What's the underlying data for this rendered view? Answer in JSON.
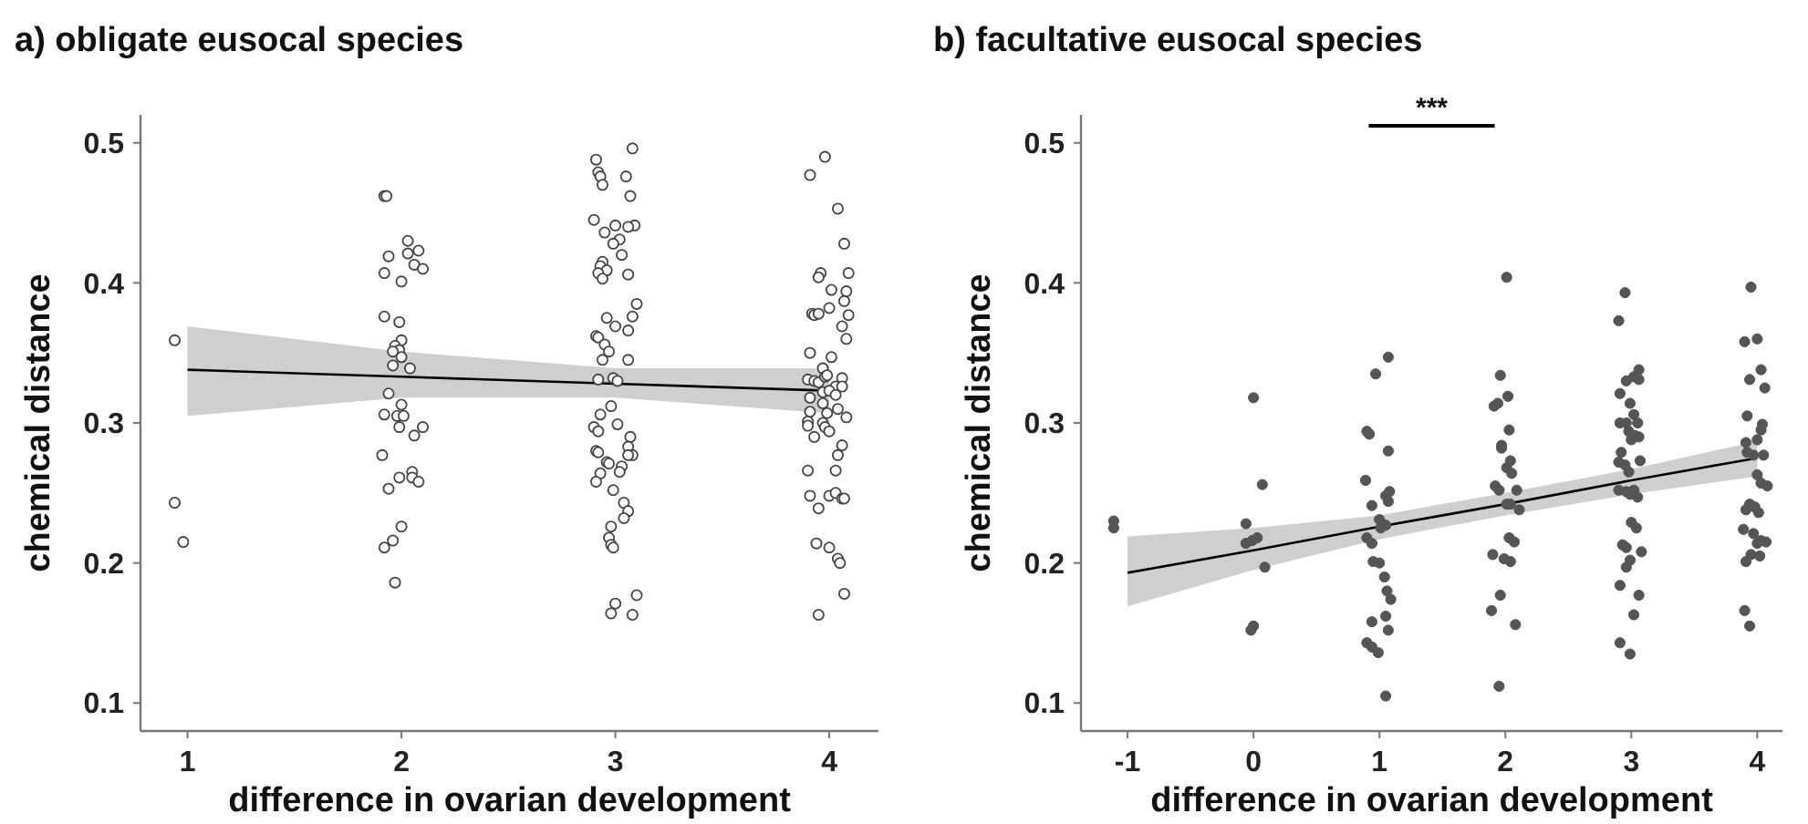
{
  "chart_data": [
    {
      "type": "scatter",
      "title": "a) obligate eusocal species",
      "xlabel": "difference in ovarian development",
      "ylabel": "chemical distance",
      "xlim": [
        0.78,
        4.23
      ],
      "ylim": [
        0.08,
        0.52
      ],
      "xticks": [
        1,
        2,
        3,
        4
      ],
      "yticks": [
        0.1,
        0.2,
        0.3,
        0.4,
        0.5
      ],
      "series": [
        {
          "marker": "circle",
          "color": "#444444",
          "x": [
            0.94,
            0.94,
            0.98,
            1.92,
            1.93,
            2.03,
            2.08,
            1.94,
            2.03,
            2.06,
            2.1,
            1.92,
            2.0,
            1.92,
            1.99,
            2.0,
            1.97,
            1.99,
            1.96,
            2.0,
            1.96,
            2.04,
            1.94,
            2.0,
            1.92,
            1.98,
            2.01,
            1.99,
            2.1,
            2.06,
            1.91,
            2.05,
            2.05,
            1.99,
            2.08,
            1.94,
            2.0,
            1.96,
            1.92,
            1.97,
            3.08,
            2.91,
            2.92,
            2.93,
            2.94,
            3.05,
            3.07,
            2.9,
            2.95,
            3.0,
            3.09,
            3.06,
            3.02,
            2.99,
            3.03,
            2.94,
            2.93,
            2.96,
            2.92,
            2.94,
            3.06,
            3.1,
            3.08,
            2.96,
            3.0,
            3.06,
            2.91,
            2.92,
            2.95,
            2.97,
            2.94,
            3.06,
            2.92,
            2.99,
            3.01,
            2.98,
            2.93,
            3.01,
            2.9,
            2.92,
            3.07,
            3.06,
            2.91,
            2.92,
            3.08,
            3.06,
            2.96,
            2.97,
            3.03,
            3.02,
            2.93,
            2.91,
            2.99,
            3.04,
            3.06,
            3.04,
            2.98,
            2.97,
            2.98,
            2.99,
            3.0,
            2.98,
            3.08,
            3.1,
            3.98,
            3.91,
            4.04,
            4.07,
            3.96,
            3.95,
            4.09,
            4.01,
            4.08,
            4.07,
            3.92,
            3.93,
            3.95,
            4.0,
            4.09,
            4.06,
            4.08,
            3.91,
            4.01,
            3.97,
            3.9,
            3.93,
            3.95,
            3.98,
            3.99,
            4.06,
            4.03,
            3.97,
            4.0,
            4.06,
            4.03,
            3.91,
            3.97,
            3.91,
            3.99,
            4.04,
            4.08,
            3.9,
            3.9,
            3.97,
            3.98,
            4.0,
            3.93,
            4.06,
            4.04,
            4.03,
            3.9,
            3.91,
            3.95,
            4.0,
            4.03,
            4.06,
            4.07,
            3.94,
            4.0,
            4.04,
            4.05,
            4.07,
            3.95
          ],
          "values": [
            0.359,
            0.243,
            0.215,
            0.462,
            0.462,
            0.43,
            0.423,
            0.419,
            0.421,
            0.413,
            0.41,
            0.407,
            0.401,
            0.376,
            0.372,
            0.359,
            0.355,
            0.352,
            0.351,
            0.347,
            0.341,
            0.339,
            0.321,
            0.313,
            0.306,
            0.305,
            0.305,
            0.297,
            0.297,
            0.291,
            0.277,
            0.265,
            0.261,
            0.261,
            0.258,
            0.253,
            0.226,
            0.216,
            0.211,
            0.186,
            0.496,
            0.488,
            0.479,
            0.476,
            0.47,
            0.476,
            0.462,
            0.445,
            0.436,
            0.441,
            0.441,
            0.44,
            0.431,
            0.428,
            0.42,
            0.415,
            0.412,
            0.409,
            0.407,
            0.403,
            0.406,
            0.385,
            0.376,
            0.375,
            0.369,
            0.366,
            0.362,
            0.361,
            0.356,
            0.351,
            0.345,
            0.345,
            0.331,
            0.332,
            0.33,
            0.312,
            0.306,
            0.299,
            0.297,
            0.294,
            0.29,
            0.283,
            0.28,
            0.279,
            0.277,
            0.277,
            0.272,
            0.271,
            0.269,
            0.265,
            0.264,
            0.258,
            0.252,
            0.243,
            0.237,
            0.232,
            0.226,
            0.218,
            0.213,
            0.211,
            0.171,
            0.164,
            0.163,
            0.177,
            0.49,
            0.477,
            0.453,
            0.428,
            0.407,
            0.404,
            0.407,
            0.395,
            0.394,
            0.387,
            0.378,
            0.377,
            0.378,
            0.382,
            0.377,
            0.369,
            0.36,
            0.35,
            0.347,
            0.339,
            0.331,
            0.33,
            0.329,
            0.333,
            0.334,
            0.332,
            0.326,
            0.322,
            0.323,
            0.326,
            0.32,
            0.318,
            0.314,
            0.308,
            0.307,
            0.31,
            0.304,
            0.301,
            0.298,
            0.3,
            0.297,
            0.294,
            0.29,
            0.284,
            0.277,
            0.266,
            0.266,
            0.248,
            0.239,
            0.248,
            0.25,
            0.246,
            0.246,
            0.214,
            0.211,
            0.203,
            0.2,
            0.178,
            0.163
          ]
        },
        {
          "type": "line",
          "color": "#000000",
          "x": [
            1,
            2,
            3,
            4
          ],
          "values": [
            0.338,
            0.333,
            0.328,
            0.323
          ],
          "lower": [
            0.305,
            0.318,
            0.318,
            0.307
          ],
          "upper": [
            0.369,
            0.351,
            0.339,
            0.339
          ]
        }
      ]
    },
    {
      "type": "scatter",
      "title": "b) facultative eusocal species",
      "xlabel": "difference in ovarian development",
      "ylabel": "chemical distance",
      "xlim": [
        -1.37,
        4.2
      ],
      "ylim": [
        0.08,
        0.52
      ],
      "xticks": [
        -1,
        0,
        1,
        2,
        3,
        4
      ],
      "yticks": [
        0.1,
        0.2,
        0.3,
        0.4,
        0.5
      ],
      "annotations": [
        "***"
      ],
      "series": [
        {
          "marker": "circle",
          "color": "#555555",
          "x": [
            -1.11,
            -1.11,
            0.0,
            0.07,
            -0.06,
            -0.06,
            -0.01,
            0.03,
            0.09,
            -0.02,
            0.0,
            1.07,
            0.97,
            0.9,
            0.92,
            1.07,
            0.89,
            0.94,
            1.08,
            1.05,
            1.07,
            1.0,
            1.05,
            1.01,
            0.9,
            0.94,
            0.95,
            1.0,
            1.04,
            1.06,
            1.09,
            1.05,
            1.07,
            0.94,
            0.9,
            0.94,
            0.99,
            1.05,
            2.01,
            1.96,
            2.02,
            1.91,
            1.94,
            2.03,
            1.97,
            1.97,
            2.01,
            2.05,
            2.04,
            1.92,
            1.95,
            2.09,
            2.01,
            2.04,
            2.11,
            2.03,
            2.07,
            1.9,
            1.99,
            2.04,
            1.96,
            1.89,
            2.08,
            1.95,
            2.95,
            2.9,
            3.06,
            3.02,
            2.96,
            3.06,
            2.91,
            2.99,
            3.02,
            2.91,
            2.96,
            3.05,
            2.98,
            3.03,
            3.0,
            3.06,
            2.92,
            2.9,
            2.95,
            3.07,
            2.98,
            2.9,
            2.96,
            3.02,
            3.05,
            2.99,
            3.0,
            3.04,
            2.93,
            2.96,
            3.08,
            2.99,
            2.96,
            2.91,
            3.06,
            3.02,
            2.91,
            2.99,
            3.95,
            3.9,
            4.0,
            4.03,
            4.06,
            3.94,
            3.92,
            4.04,
            4.03,
            4.0,
            3.91,
            3.97,
            3.92,
            4.05,
            4.0,
            4.03,
            4.08,
            3.94,
            3.98,
            4.01,
            3.91,
            3.89,
            3.97,
            4.03,
            4.07,
            4.0,
            3.95,
            3.91,
            4.02,
            3.9,
            3.94
          ],
          "values": [
            0.23,
            0.225,
            0.318,
            0.256,
            0.228,
            0.214,
            0.216,
            0.218,
            0.197,
            0.152,
            0.155,
            0.347,
            0.335,
            0.294,
            0.292,
            0.28,
            0.259,
            0.241,
            0.251,
            0.248,
            0.244,
            0.231,
            0.227,
            0.225,
            0.218,
            0.214,
            0.201,
            0.2,
            0.19,
            0.18,
            0.174,
            0.162,
            0.152,
            0.158,
            0.143,
            0.14,
            0.136,
            0.105,
            0.404,
            0.334,
            0.319,
            0.312,
            0.314,
            0.295,
            0.284,
            0.282,
            0.268,
            0.264,
            0.273,
            0.255,
            0.252,
            0.252,
            0.242,
            0.242,
            0.238,
            0.218,
            0.215,
            0.206,
            0.203,
            0.201,
            0.177,
            0.166,
            0.156,
            0.112,
            0.393,
            0.373,
            0.338,
            0.333,
            0.33,
            0.331,
            0.321,
            0.314,
            0.306,
            0.3,
            0.3,
            0.3,
            0.294,
            0.291,
            0.288,
            0.29,
            0.279,
            0.272,
            0.27,
            0.273,
            0.265,
            0.252,
            0.251,
            0.252,
            0.247,
            0.249,
            0.229,
            0.225,
            0.213,
            0.211,
            0.208,
            0.202,
            0.197,
            0.184,
            0.177,
            0.163,
            0.143,
            0.135,
            0.397,
            0.358,
            0.36,
            0.338,
            0.325,
            0.331,
            0.305,
            0.299,
            0.295,
            0.288,
            0.286,
            0.277,
            0.279,
            0.277,
            0.263,
            0.257,
            0.255,
            0.242,
            0.24,
            0.236,
            0.238,
            0.224,
            0.221,
            0.216,
            0.215,
            0.214,
            0.206,
            0.201,
            0.205,
            0.166,
            0.155
          ]
        },
        {
          "type": "line",
          "color": "#000000",
          "x": [
            -1,
            0,
            1,
            2,
            3,
            4
          ],
          "values": [
            0.193,
            0.209,
            0.226,
            0.242,
            0.259,
            0.275
          ],
          "lower": [
            0.169,
            0.195,
            0.217,
            0.234,
            0.249,
            0.262
          ],
          "upper": [
            0.219,
            0.225,
            0.234,
            0.25,
            0.267,
            0.287
          ]
        }
      ]
    }
  ]
}
